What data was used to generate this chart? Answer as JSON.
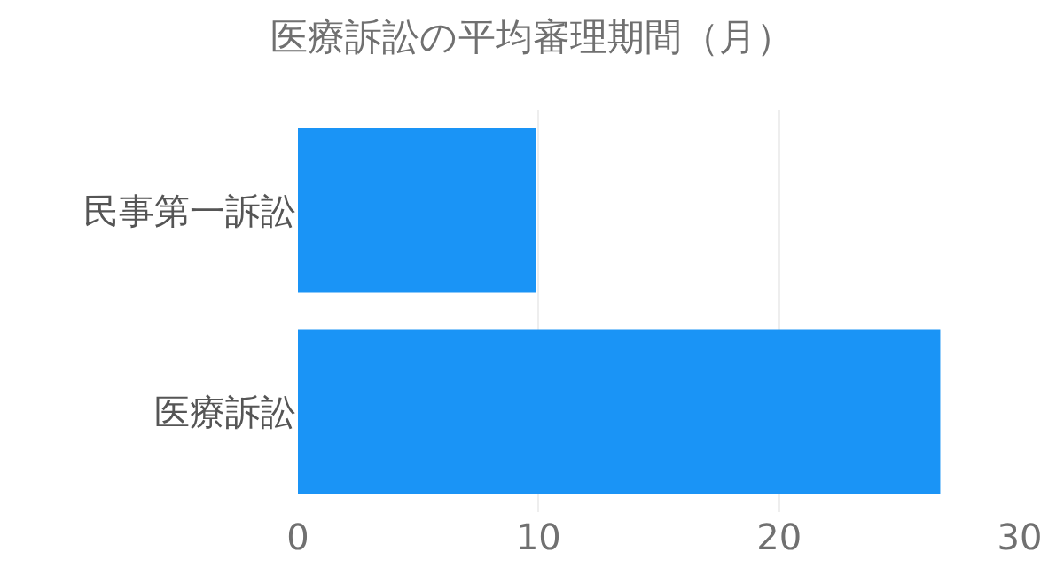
{
  "chart_data": {
    "type": "bar",
    "orientation": "horizontal",
    "title": "医療訴訟の平均審理期間（月）",
    "categories": [
      "民事第一訴訟",
      "医療訴訟"
    ],
    "values": [
      9.9,
      26.7
    ],
    "color": "#1a94f6",
    "xlim": [
      0,
      30
    ],
    "xticks": [
      0,
      10,
      20,
      30
    ],
    "grid": "x",
    "legend": false
  }
}
